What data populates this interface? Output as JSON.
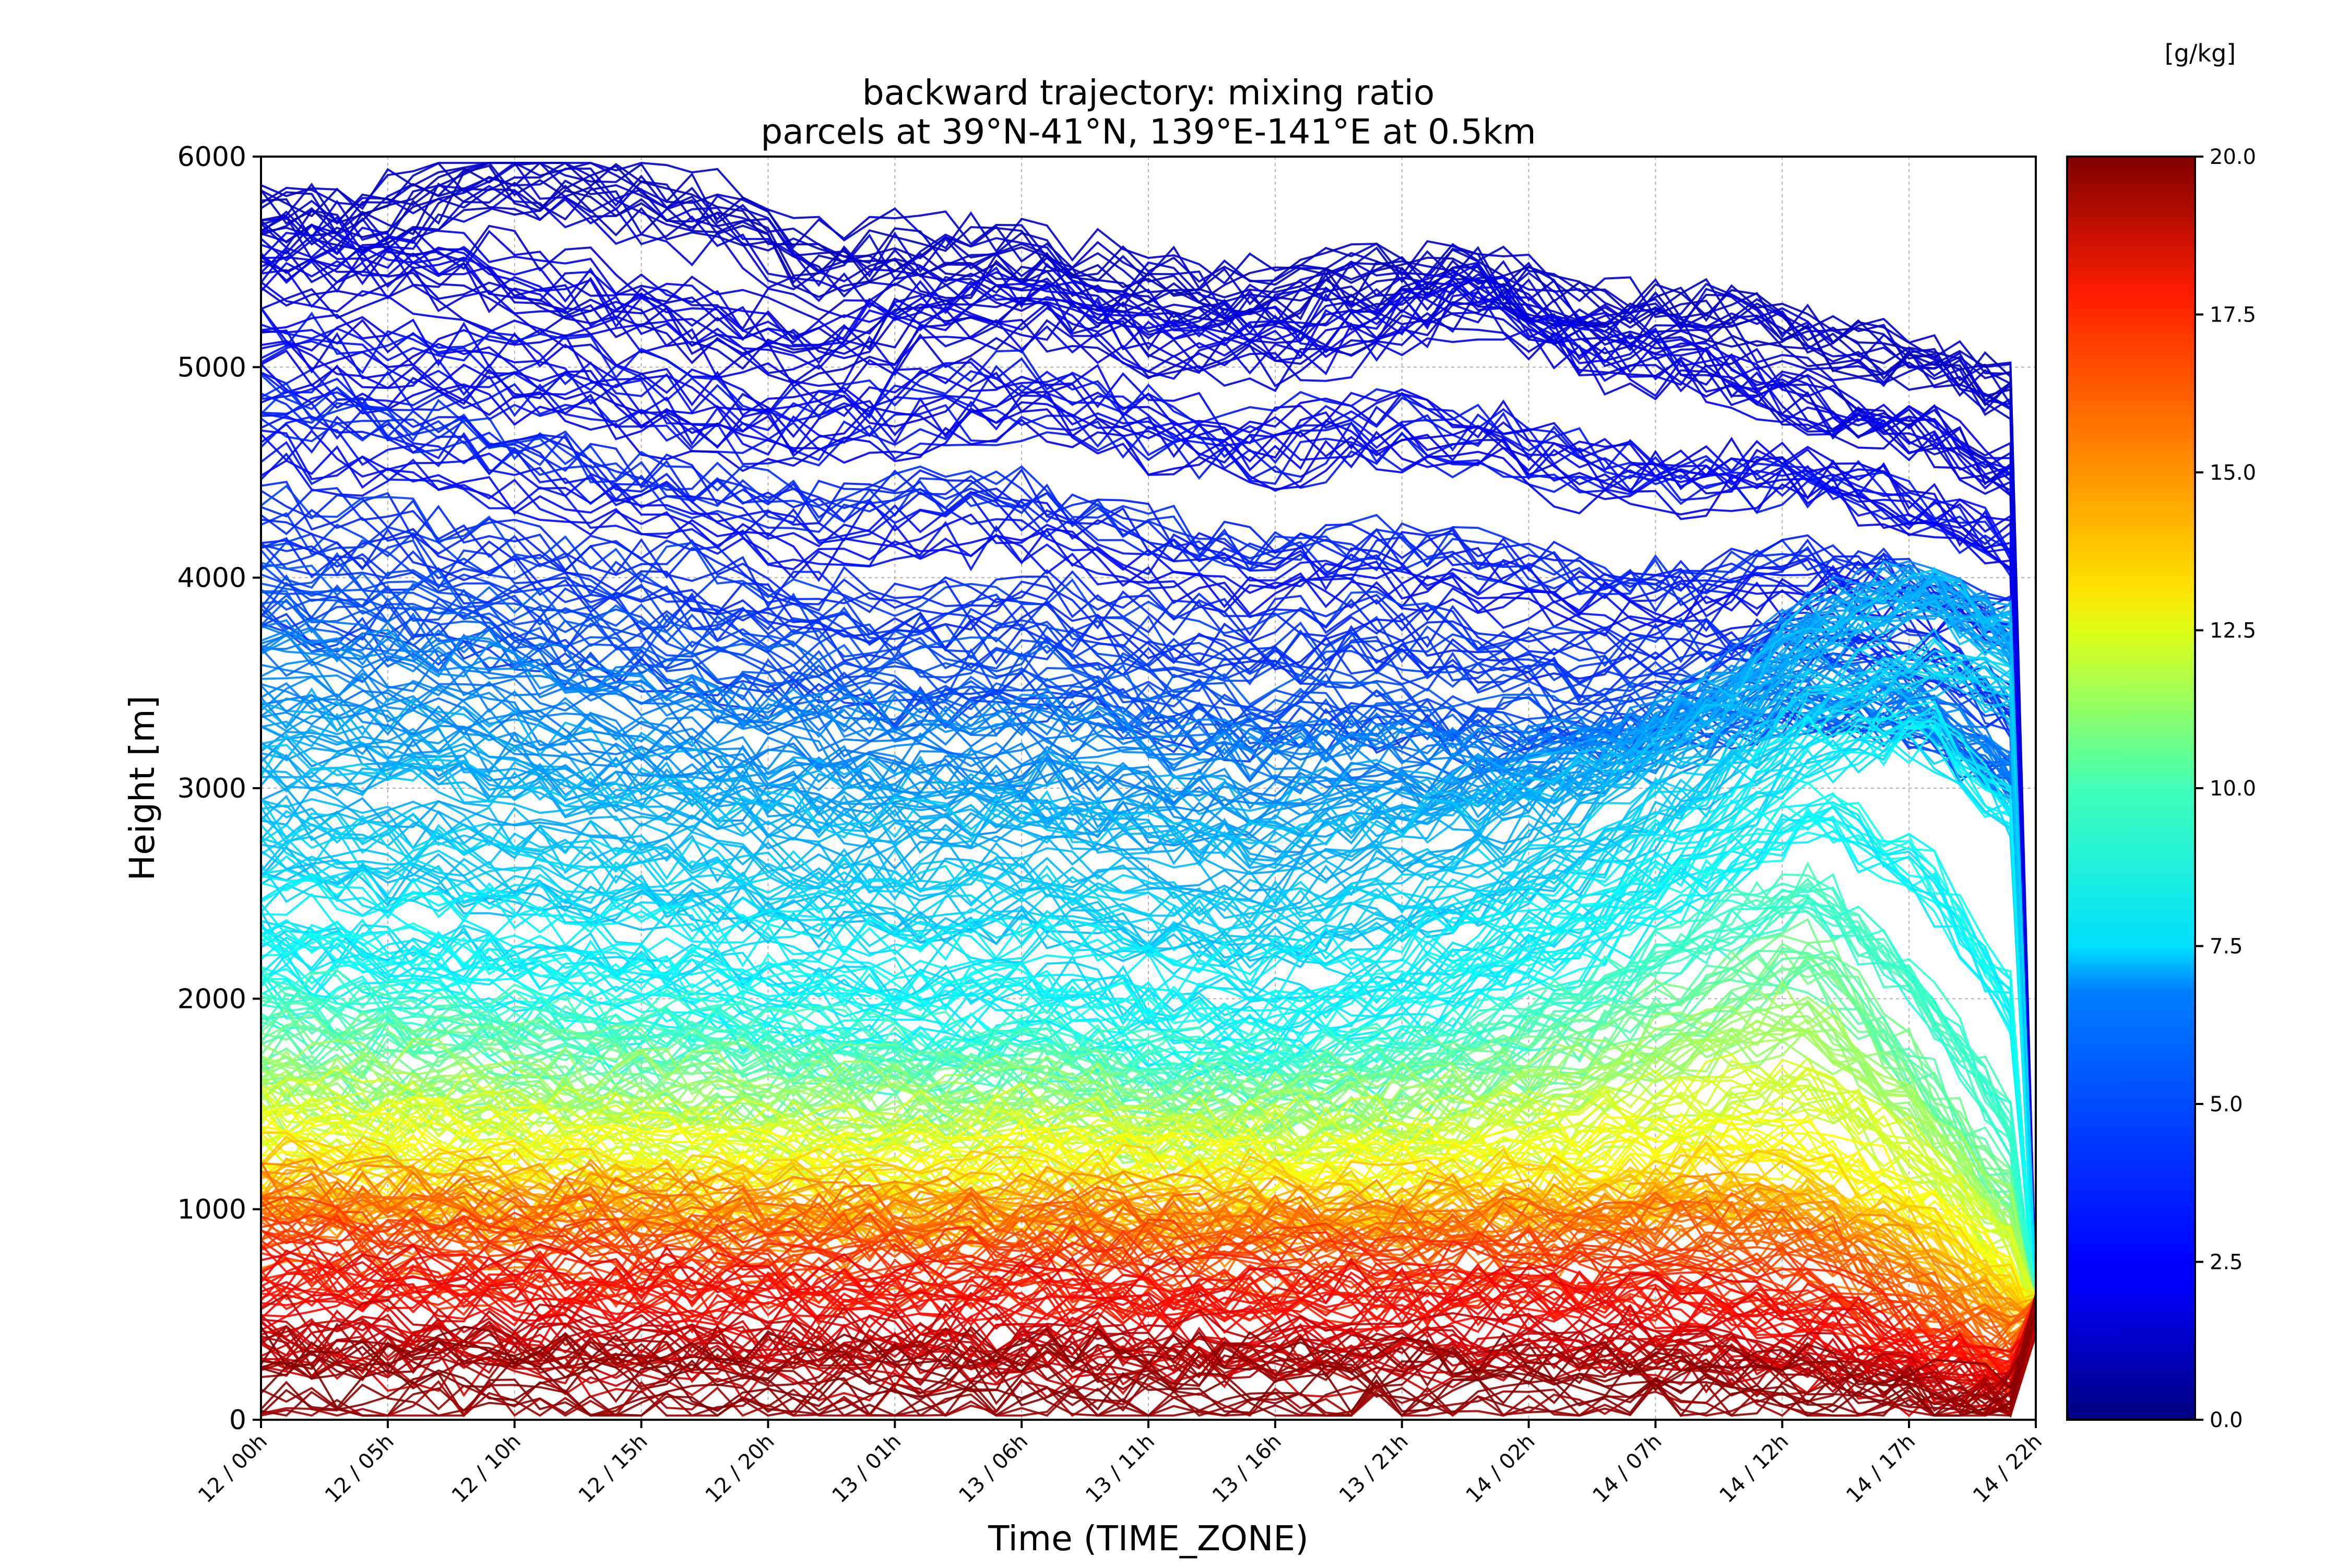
{
  "chart_data": {
    "type": "line",
    "title": "backward trajectory:  mixing ratio",
    "subtitle": "parcels at 39°N-41°N, 139°E-141°E at 0.5km",
    "xlabel": "Time (TIME_ZONE)",
    "ylabel": "Height [m]",
    "ylim": [
      0,
      6000
    ],
    "yticks": [
      0,
      1000,
      2000,
      3000,
      4000,
      5000,
      6000
    ],
    "xticks": [
      "12 / 00h",
      "12 / 05h",
      "12 / 10h",
      "12 / 15h",
      "12 / 20h",
      "13 / 01h",
      "13 / 06h",
      "13 / 11h",
      "13 / 16h",
      "13 / 21h",
      "14 / 02h",
      "14 / 07h",
      "14 / 12h",
      "14 / 17h",
      "14 / 22h"
    ],
    "x_hours_span": [
      0,
      70
    ],
    "grid": true,
    "colorbar": {
      "label": "[g/kg]",
      "range": [
        0,
        20
      ],
      "ticks": [
        "0.0",
        "2.5",
        "5.0",
        "7.5",
        "10.0",
        "12.5",
        "15.0",
        "17.5",
        "20.0"
      ],
      "colormap": "jet"
    },
    "series_note": "approx. several hundred parcel trajectories; heights estimated from the figure",
    "series": [
      {
        "mixing_ratio": 1.5,
        "heights": [
          5700,
          5650,
          5880,
          5800,
          5700,
          5450,
          5500,
          5450,
          5350,
          5300,
          5400,
          5400,
          5200,
          5250,
          5100,
          5000,
          4850
        ]
      },
      {
        "mixing_ratio": 2.0,
        "heights": [
          5480,
          5500,
          5420,
          5300,
          5200,
          5100,
          5250,
          5300,
          5150,
          5100,
          5200,
          5350,
          5100,
          5000,
          4800,
          4700,
          4400
        ]
      },
      {
        "mixing_ratio": 2.5,
        "heights": [
          5050,
          5000,
          4950,
          4900,
          4750,
          4700,
          4800,
          4850,
          4700,
          4600,
          4700,
          4650,
          4500,
          4450,
          4500,
          4300,
          4100
        ]
      },
      {
        "mixing_ratio": 3.0,
        "heights": [
          4700,
          4600,
          4550,
          4400,
          4300,
          4200,
          4300,
          4250,
          4100,
          4000,
          4050,
          4000,
          3900,
          3900,
          4000,
          3900,
          3700
        ]
      },
      {
        "mixing_ratio": 3.5,
        "heights": [
          4200,
          4150,
          4050,
          3950,
          3900,
          3800,
          3750,
          3800,
          3700,
          3650,
          3700,
          3600,
          3550,
          3600,
          3700,
          3600,
          3300
        ]
      },
      {
        "mixing_ratio": 4.0,
        "heights": [
          3900,
          3850,
          3800,
          3700,
          3600,
          3550,
          3500,
          3550,
          3400,
          3350,
          3400,
          3300,
          3300,
          3350,
          3400,
          3300,
          3000
        ]
      },
      {
        "mixing_ratio": 5.0,
        "heights": [
          3600,
          3550,
          3500,
          3400,
          3300,
          3250,
          3200,
          3250,
          3150,
          3100,
          3150,
          3100,
          3150,
          3300,
          3500,
          3400,
          2900
        ]
      },
      {
        "mixing_ratio": 5.5,
        "heights": [
          3300,
          3250,
          3200,
          3100,
          3050,
          3000,
          2950,
          3000,
          2900,
          2850,
          2950,
          3000,
          3100,
          3400,
          3800,
          4000,
          3600
        ]
      },
      {
        "mixing_ratio": 6.0,
        "heights": [
          3000,
          2950,
          2900,
          2850,
          2800,
          2750,
          2700,
          2750,
          2650,
          2600,
          2700,
          2800,
          3000,
          3300,
          3700,
          3900,
          3700
        ]
      },
      {
        "mixing_ratio": 6.5,
        "heights": [
          2700,
          2650,
          2600,
          2550,
          2500,
          2450,
          2400,
          2450,
          2350,
          2300,
          2400,
          2500,
          2700,
          3000,
          3400,
          3600,
          3400
        ]
      },
      {
        "mixing_ratio": 7.0,
        "heights": [
          2400,
          2350,
          2350,
          2300,
          2250,
          2200,
          2150,
          2200,
          2100,
          2050,
          2150,
          2300,
          2500,
          2800,
          3200,
          3300,
          2800
        ]
      },
      {
        "mixing_ratio": 7.5,
        "heights": [
          2200,
          2150,
          2100,
          2050,
          2000,
          1950,
          1900,
          1950,
          1850,
          1800,
          1900,
          2100,
          2300,
          2600,
          2900,
          2600,
          1800
        ]
      },
      {
        "mixing_ratio": 8.5,
        "heights": [
          1950,
          1900,
          1850,
          1800,
          1800,
          1750,
          1700,
          1750,
          1650,
          1650,
          1700,
          1800,
          2000,
          2300,
          2500,
          2000,
          1200
        ]
      },
      {
        "mixing_ratio": 9.5,
        "heights": [
          1750,
          1700,
          1700,
          1650,
          1600,
          1600,
          1550,
          1600,
          1500,
          1500,
          1550,
          1650,
          1800,
          2000,
          2200,
          1600,
          900
        ]
      },
      {
        "mixing_ratio": 10.5,
        "heights": [
          1600,
          1550,
          1550,
          1500,
          1500,
          1450,
          1450,
          1500,
          1400,
          1400,
          1450,
          1500,
          1600,
          1800,
          1900,
          1400,
          800
        ]
      },
      {
        "mixing_ratio": 11.5,
        "heights": [
          1450,
          1400,
          1400,
          1350,
          1350,
          1300,
          1300,
          1350,
          1300,
          1300,
          1300,
          1350,
          1400,
          1500,
          1600,
          1200,
          700
        ]
      },
      {
        "mixing_ratio": 12.5,
        "heights": [
          1300,
          1300,
          1250,
          1250,
          1200,
          1200,
          1200,
          1250,
          1200,
          1150,
          1200,
          1200,
          1250,
          1300,
          1300,
          1000,
          600
        ]
      },
      {
        "mixing_ratio": 13.5,
        "heights": [
          1150,
          1150,
          1100,
          1100,
          1100,
          1050,
          1050,
          1100,
          1050,
          1050,
          1050,
          1100,
          1100,
          1150,
          1100,
          900,
          500
        ]
      },
      {
        "mixing_ratio": 14.5,
        "heights": [
          1050,
          1000,
          1000,
          980,
          960,
          950,
          940,
          960,
          930,
          920,
          930,
          940,
          950,
          1000,
          950,
          700,
          400
        ]
      },
      {
        "mixing_ratio": 15.5,
        "heights": [
          950,
          920,
          900,
          880,
          870,
          860,
          850,
          870,
          840,
          830,
          840,
          850,
          860,
          880,
          820,
          550,
          300
        ]
      },
      {
        "mixing_ratio": 16.5,
        "heights": [
          800,
          780,
          760,
          740,
          730,
          720,
          710,
          730,
          700,
          690,
          700,
          710,
          720,
          700,
          600,
          400,
          200
        ]
      },
      {
        "mixing_ratio": 17.5,
        "heights": [
          600,
          590,
          580,
          560,
          550,
          540,
          530,
          550,
          520,
          510,
          520,
          530,
          540,
          520,
          450,
          300,
          150
        ]
      },
      {
        "mixing_ratio": 18.5,
        "heights": [
          400,
          390,
          380,
          370,
          360,
          360,
          350,
          360,
          340,
          340,
          350,
          350,
          360,
          340,
          300,
          200,
          100
        ]
      },
      {
        "mixing_ratio": 19.5,
        "heights": [
          200,
          190,
          190,
          180,
          180,
          170,
          170,
          180,
          170,
          160,
          170,
          170,
          170,
          160,
          150,
          100,
          80
        ]
      }
    ]
  }
}
